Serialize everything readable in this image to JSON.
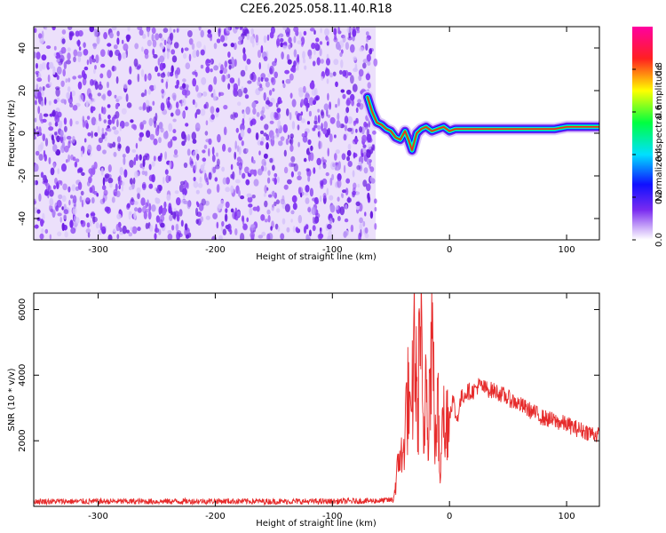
{
  "figure_title": "C2E6.2025.058.11.40.R18",
  "colors": {
    "snr_line": "#e62b2b",
    "noise_purple": "#7a2cf0",
    "frame": "#000000"
  },
  "chart_data": [
    {
      "type": "heatmap",
      "title": "C2E6.2025.058.11.40.R18",
      "xlabel": "Height of straight line (km)",
      "ylabel": "Frequency (Hz)",
      "xlim": [
        -355,
        128
      ],
      "ylim": [
        -50,
        50
      ],
      "x_ticks": [
        -300,
        -200,
        -100,
        0,
        100
      ],
      "y_ticks": [
        -40,
        -20,
        0,
        20,
        40
      ],
      "x_tick_labels": [
        "-300",
        "-200",
        "-100",
        "0",
        "100"
      ],
      "y_tick_labels": [
        "-40",
        "-20",
        "0",
        "20",
        "40"
      ],
      "noise_region_x": [
        -355,
        -63
      ],
      "signal_trace": {
        "x": [
          -70,
          -66,
          -62,
          -58,
          -54,
          -50,
          -46,
          -42,
          -38,
          -35,
          -32,
          -28,
          -24,
          -20,
          -15,
          -10,
          -5,
          0,
          5,
          10,
          20,
          30,
          40,
          50,
          60,
          70,
          80,
          90,
          100,
          110,
          120,
          128
        ],
        "freq_hz": [
          17,
          10,
          5,
          4,
          2,
          1,
          -2,
          -3,
          1,
          -3,
          -8,
          0,
          2,
          3,
          1,
          2,
          3,
          1,
          2,
          2,
          2,
          2,
          2,
          2,
          2,
          2,
          2,
          2,
          3,
          3,
          3,
          3
        ]
      },
      "colorbar": {
        "label": "Normalized spectral amplitude",
        "range": [
          0,
          1
        ],
        "ticks": [
          0,
          0.2,
          0.4,
          0.6,
          0.8
        ],
        "tick_labels": [
          "0.0",
          "0.2",
          "0.4",
          "0.6",
          "0.8"
        ],
        "colormap": [
          "#ffffff",
          "#7a2cf0",
          "#1010ff",
          "#00e0ff",
          "#00ff40",
          "#ffff00",
          "#ff2020",
          "#ff00a0"
        ]
      },
      "grid": false
    },
    {
      "type": "line",
      "xlabel": "Height of straight line (km)",
      "ylabel": "SNR (10 * v/v)",
      "xlim": [
        -355,
        128
      ],
      "ylim": [
        0,
        6500
      ],
      "x_ticks": [
        -300,
        -200,
        -100,
        0,
        100
      ],
      "y_ticks": [
        2000,
        4000,
        6000
      ],
      "x_tick_labels": [
        "-300",
        "-200",
        "-100",
        "0",
        "100"
      ],
      "y_tick_labels": [
        "2000",
        "4000",
        "6000"
      ],
      "series": [
        {
          "values_xy": [
            [
              -355,
              150
            ],
            [
              -300,
              150
            ],
            [
              -250,
              150
            ],
            [
              -200,
              160
            ],
            [
              -150,
              150
            ],
            [
              -100,
              150
            ],
            [
              -60,
              170
            ],
            [
              -48,
              200
            ],
            [
              -45,
              900
            ],
            [
              -42,
              1800
            ],
            [
              -40,
              1200
            ],
            [
              -38,
              2600
            ],
            [
              -35,
              3400
            ],
            [
              -33,
              2000
            ],
            [
              -30,
              5200
            ],
            [
              -27,
              2500
            ],
            [
              -25,
              6300
            ],
            [
              -22,
              1200
            ],
            [
              -20,
              4800
            ],
            [
              -18,
              2600
            ],
            [
              -15,
              5500
            ],
            [
              -12,
              1800
            ],
            [
              -10,
              3200
            ],
            [
              -8,
              700
            ],
            [
              -6,
              4200
            ],
            [
              -4,
              1500
            ],
            [
              -2,
              3000
            ],
            [
              0,
              2800
            ],
            [
              3,
              3300
            ],
            [
              6,
              2600
            ],
            [
              10,
              3300
            ],
            [
              15,
              3500
            ],
            [
              20,
              3500
            ],
            [
              25,
              3700
            ],
            [
              30,
              3600
            ],
            [
              40,
              3500
            ],
            [
              50,
              3300
            ],
            [
              60,
              3100
            ],
            [
              70,
              2900
            ],
            [
              80,
              2700
            ],
            [
              90,
              2600
            ],
            [
              100,
              2500
            ],
            [
              110,
              2350
            ],
            [
              120,
              2250
            ],
            [
              128,
              2150
            ]
          ]
        }
      ],
      "grid": false
    }
  ]
}
